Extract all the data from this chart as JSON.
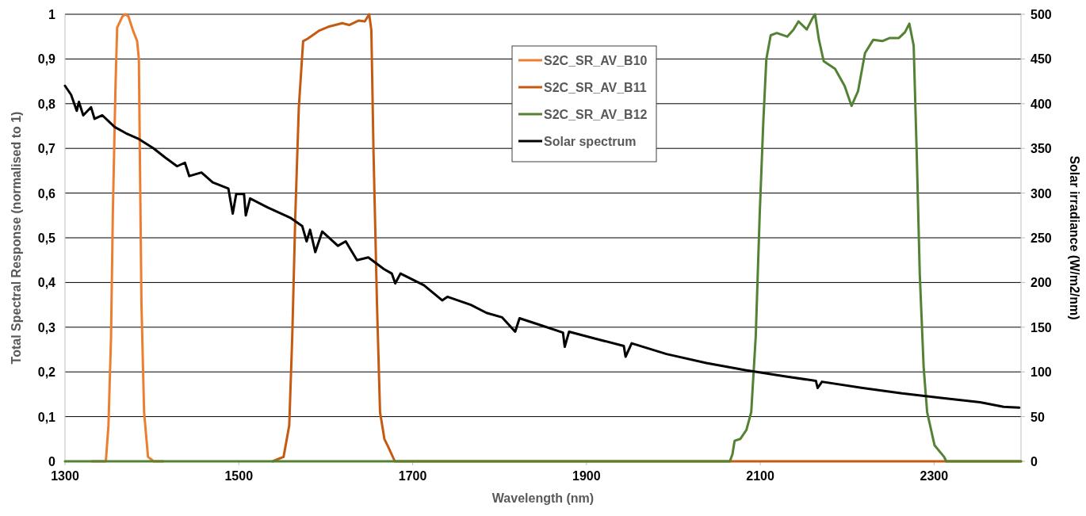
{
  "chart_data": {
    "type": "line",
    "xlabel": "Wavelength (nm)",
    "ylabel": "Total Spectral Response (normalised to 1)",
    "y2label": "Solar irradiance (W/m2/nm)",
    "xlim": [
      1300,
      2400
    ],
    "xticks": [
      1300,
      1500,
      1700,
      1900,
      2100,
      2300
    ],
    "ylim": [
      0,
      1
    ],
    "yticks": [
      0,
      {
        "value": 0.1,
        "label": "0,1"
      },
      {
        "value": 0.2,
        "label": "0,2"
      },
      {
        "value": 0.3,
        "label": "0,3"
      },
      {
        "value": 0.4,
        "label": "0,4"
      },
      {
        "value": 0.5,
        "label": "0,5"
      },
      {
        "value": 0.6,
        "label": "0,6"
      },
      {
        "value": 0.7,
        "label": "0,7"
      },
      {
        "value": 0.8,
        "label": "0,8"
      },
      {
        "value": 0.9,
        "label": "0,9"
      },
      1
    ],
    "y2lim": [
      0,
      500
    ],
    "y2ticks": [
      0,
      50,
      100,
      150,
      200,
      250,
      300,
      350,
      400,
      450,
      500
    ],
    "grid": "y",
    "legend": "top",
    "line_style": "solid",
    "series": [
      {
        "name": "S2C_SR_AV_B10",
        "color": "#ed7d31",
        "x": [
          1331,
          1347,
          1350,
          1353,
          1355,
          1358,
          1360,
          1366,
          1369.5,
          1373,
          1378,
          1383,
          1385,
          1386.5,
          1388,
          1391,
          1395.5,
          1402,
          1413
        ],
        "values": [
          0,
          0,
          0.08,
          0.28,
          0.55,
          0.83,
          0.97,
          0.995,
          1,
          0.995,
          0.965,
          0.94,
          0.9,
          0.62,
          0.35,
          0.11,
          0.01,
          0,
          0
        ]
      },
      {
        "name": "S2C_SR_AV_B11",
        "color": "#c55a11",
        "x": [
          1539,
          1551.5,
          1558,
          1561.5,
          1565,
          1569,
          1574,
          1579,
          1593,
          1603,
          1619,
          1627,
          1638,
          1645,
          1650,
          1652.5,
          1655,
          1659,
          1662.5,
          1667.5,
          1672.5,
          1679.5,
          2400
        ],
        "values": [
          0,
          0.01,
          0.08,
          0.28,
          0.55,
          0.79,
          0.94,
          0.945,
          0.964,
          0.972,
          0.98,
          0.976,
          0.986,
          0.984,
          1,
          0.964,
          0.69,
          0.35,
          0.11,
          0.05,
          0.03,
          0,
          0
        ]
      },
      {
        "name": "S2C_SR_AV_B12",
        "color": "#548235",
        "x": [
          1300,
          2065,
          2068,
          2070.5,
          2077,
          2084,
          2089.6,
          2094.8,
          2099.3,
          2103.5,
          2107,
          2112,
          2119,
          2131,
          2138,
          2144,
          2153.5,
          2160,
          2163,
          2167.5,
          2173,
          2186,
          2197,
          2205,
          2212.5,
          2220.5,
          2230,
          2240.5,
          2249,
          2259.5,
          2266.5,
          2271.5,
          2276.5,
          2280,
          2283.5,
          2288,
          2292,
          2300.5,
          2311.5,
          2314,
          2400
        ],
        "values": [
          0,
          0,
          0.016,
          0.046,
          0.05,
          0.07,
          0.11,
          0.28,
          0.55,
          0.76,
          0.9,
          0.953,
          0.958,
          0.95,
          0.965,
          0.984,
          0.966,
          0.991,
          1,
          0.943,
          0.895,
          0.878,
          0.84,
          0.795,
          0.828,
          0.913,
          0.943,
          0.94,
          0.947,
          0.947,
          0.96,
          0.979,
          0.93,
          0.69,
          0.42,
          0.21,
          0.11,
          0.036,
          0.01,
          0,
          0
        ]
      },
      {
        "name": "Solar spectrum",
        "color": "#000000",
        "axis": "y2",
        "x": [
          1300,
          1307,
          1313.5,
          1316,
          1321,
          1330,
          1334,
          1343,
          1357,
          1370,
          1384,
          1402,
          1415,
          1429,
          1438,
          1443,
          1457,
          1470,
          1488,
          1493,
          1497,
          1506,
          1508,
          1513,
          1533,
          1560,
          1573,
          1578,
          1582,
          1588,
          1596,
          1614,
          1623,
          1636,
          1649,
          1667,
          1676,
          1680,
          1686,
          1713,
          1734,
          1740,
          1767,
          1785,
          1803,
          1818,
          1823,
          1848,
          1873,
          1875,
          1880,
          1911,
          1943,
          1945,
          1952,
          1992,
          2038,
          2083,
          2128,
          2164,
          2166,
          2171,
          2218,
          2263,
          2308,
          2353,
          2380,
          2398
        ],
        "values": [
          420,
          410,
          392,
          402,
          387,
          396,
          383,
          387,
          374,
          367,
          361,
          350,
          340,
          330,
          334,
          319,
          323,
          312,
          305,
          277,
          299,
          299,
          275,
          294,
          284,
          272,
          263,
          246,
          259,
          234,
          257,
          241,
          246,
          225,
          228,
          215,
          210,
          199,
          210,
          197,
          180,
          184,
          175,
          166,
          161,
          145,
          160,
          152,
          144,
          128,
          145,
          137,
          129,
          117,
          132,
          120,
          110,
          102,
          95,
          90,
          82,
          89,
          82,
          76,
          71,
          66,
          61,
          60
        ]
      }
    ]
  }
}
